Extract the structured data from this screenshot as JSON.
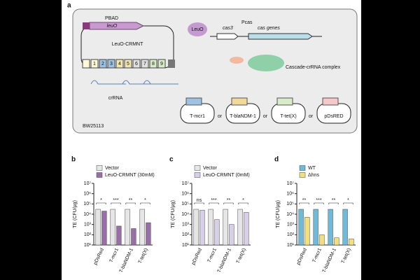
{
  "diagram": {
    "panel": "a",
    "labels": {
      "pbad": "PBAD",
      "leuo_gene": "leuO",
      "plasmid": "LeuO-CRMNT",
      "spacers": [
        "1",
        "2",
        "3",
        "4",
        "5",
        "6",
        "7",
        "8",
        "9"
      ],
      "crrna": "crRNA",
      "strain": "BW25113",
      "leuo_protein": "LeuO",
      "cas3": "cas3",
      "pcas": "Pcas",
      "cas_genes": "cas genes",
      "complex": "Cascade-crRNA complex",
      "targets": [
        "T-mcr1",
        "T-blaNDM-1",
        "T-tet(X)",
        "pDsRED"
      ],
      "or": "or"
    }
  },
  "chart_data": [
    {
      "type": "bar",
      "title": "b",
      "log": true,
      "ylabel": "TE (CFU/μg)",
      "categories": [
        "pDsRed",
        "T-mcr1",
        "T-blaNDM-1",
        "T-tet(X)"
      ],
      "series": [
        {
          "name": "Vector",
          "color": "#e6e6e6",
          "values": [
            30000,
            30000,
            30000,
            30000
          ]
        },
        {
          "name": "LeuO-CRMNT (30mM)",
          "color": "#9a6ea6",
          "values": [
            20000,
            700,
            400,
            1500
          ]
        }
      ],
      "annotations": [
        "*",
        "***",
        "**",
        "*"
      ],
      "ylim": [
        10,
        10000000
      ],
      "yticks": [
        {
          "value": 10,
          "label": "10¹"
        },
        {
          "value": 100,
          "label": "10²"
        },
        {
          "value": 1000,
          "label": "10³"
        },
        {
          "value": 10000,
          "label": "10⁴"
        },
        {
          "value": 100000,
          "label": "10⁵"
        },
        {
          "value": 1000000,
          "label": "10⁶"
        },
        {
          "value": 10000000,
          "label": "10⁷"
        }
      ]
    },
    {
      "type": "bar",
      "title": "c",
      "log": true,
      "ylabel": "TE (CFU/μg)",
      "categories": [
        "pDsRed",
        "T-mcr1",
        "T-blaNDM-1",
        "T-tet(X)"
      ],
      "series": [
        {
          "name": "Vector",
          "color": "#e6e6e6",
          "values": [
            30000,
            30000,
            30000,
            30000
          ]
        },
        {
          "name": "LeuO-CRMNT (0mM)",
          "color": "#d8d0e8",
          "values": [
            25000,
            3000,
            1000,
            15000
          ]
        }
      ],
      "annotations": [
        "ns",
        "***",
        "**",
        "*"
      ],
      "ylim": [
        10,
        10000000
      ],
      "yticks": [
        {
          "value": 10,
          "label": "10¹"
        },
        {
          "value": 100,
          "label": "10²"
        },
        {
          "value": 1000,
          "label": "10³"
        },
        {
          "value": 10000,
          "label": "10⁴"
        },
        {
          "value": 100000,
          "label": "10⁵"
        },
        {
          "value": 1000000,
          "label": "10⁶"
        },
        {
          "value": 10000000,
          "label": "10⁷"
        }
      ]
    },
    {
      "type": "bar",
      "title": "d",
      "log": true,
      "ylabel": "TE (CFU/μg)",
      "categories": [
        "pDsRed",
        "T-mcr1",
        "T-blaNDM-1",
        "T-tet(X)"
      ],
      "series": [
        {
          "name": "WT",
          "color": "#6fb9d9",
          "values": [
            30000,
            30000,
            30000,
            30000
          ]
        },
        {
          "name": "Δhns",
          "color": "#f1e07c",
          "values": [
            5000,
            100,
            50,
            40
          ]
        }
      ],
      "annotations": [
        "**",
        "***",
        "**",
        "*"
      ],
      "ylim": [
        10,
        10000000
      ],
      "yticks": [
        {
          "value": 10,
          "label": "10¹"
        },
        {
          "value": 100,
          "label": "10²"
        },
        {
          "value": 1000,
          "label": "10³"
        },
        {
          "value": 10000,
          "label": "10⁴"
        },
        {
          "value": 100000,
          "label": "10⁵"
        },
        {
          "value": 1000000,
          "label": "10⁶"
        },
        {
          "value": 10000000,
          "label": "10⁷"
        }
      ]
    }
  ]
}
